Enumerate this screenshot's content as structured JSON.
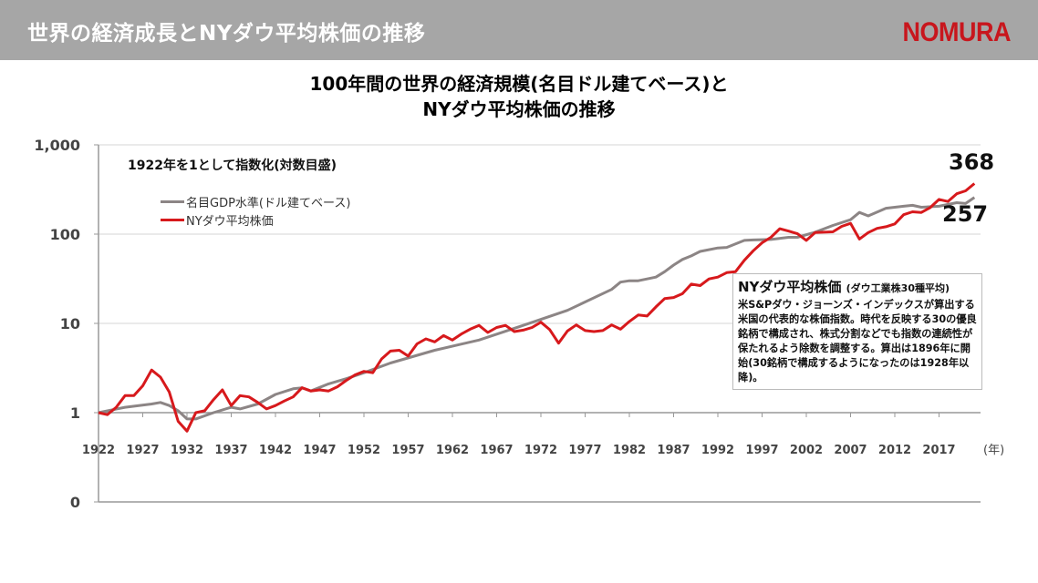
{
  "header": {
    "title": "世界の経済成長とNYダウ平均株価の推移",
    "logo": "NOMURA"
  },
  "colors": {
    "header_bg": "#a6a6a6",
    "brand": "#c8161d",
    "gdp": "#8c8585",
    "dow": "#d7191c"
  },
  "chart_data": {
    "type": "line",
    "title": [
      "100年間の世界の経済規模(名目ドル建てベース)と",
      "NYダウ平均株価の推移"
    ],
    "note": "1922年を1として指数化(対数目盛)",
    "xlabel": "(年)",
    "ylabel": "",
    "yscale": "log",
    "ylim": [
      0.1,
      1000
    ],
    "xlim": [
      1922,
      2021
    ],
    "yticks": [
      {
        "value": 1000,
        "label": "1,000"
      },
      {
        "value": 100,
        "label": "100"
      },
      {
        "value": 10,
        "label": "10"
      },
      {
        "value": 1,
        "label": "1"
      },
      {
        "value": 0.1,
        "label": "0"
      }
    ],
    "xticks": [
      "1922",
      "1927",
      "1932",
      "1937",
      "1942",
      "1947",
      "1952",
      "1957",
      "1962",
      "1967",
      "1972",
      "1977",
      "1982",
      "1987",
      "1992",
      "1997",
      "2002",
      "2007",
      "2012",
      "2017"
    ],
    "grid": true,
    "legend_position": "top-left",
    "end_labels": {
      "dow": "368",
      "gdp": "257"
    },
    "series": [
      {
        "name": "名目GDP水準(ドル建てベース)",
        "key": "gdp",
        "points": [
          [
            1922,
            1
          ],
          [
            1925,
            1.15
          ],
          [
            1928,
            1.25
          ],
          [
            1929,
            1.3
          ],
          [
            1930,
            1.2
          ],
          [
            1931,
            1.05
          ],
          [
            1932,
            0.85
          ],
          [
            1933,
            0.85
          ],
          [
            1935,
            1.0
          ],
          [
            1937,
            1.15
          ],
          [
            1938,
            1.1
          ],
          [
            1940,
            1.25
          ],
          [
            1942,
            1.6
          ],
          [
            1944,
            1.85
          ],
          [
            1945,
            1.9
          ],
          [
            1946,
            1.75
          ],
          [
            1948,
            2.1
          ],
          [
            1950,
            2.4
          ],
          [
            1952,
            2.8
          ],
          [
            1955,
            3.6
          ],
          [
            1960,
            5.0
          ],
          [
            1965,
            6.5
          ],
          [
            1970,
            9.5
          ],
          [
            1975,
            14
          ],
          [
            1980,
            24
          ],
          [
            1981,
            29
          ],
          [
            1982,
            30
          ],
          [
            1983,
            30
          ],
          [
            1985,
            33
          ],
          [
            1986,
            38
          ],
          [
            1987,
            45
          ],
          [
            1988,
            52
          ],
          [
            1989,
            57
          ],
          [
            1990,
            64
          ],
          [
            1992,
            70
          ],
          [
            1993,
            71
          ],
          [
            1995,
            85
          ],
          [
            1996,
            86
          ],
          [
            1998,
            87
          ],
          [
            2000,
            92
          ],
          [
            2001,
            92
          ],
          [
            2003,
            105
          ],
          [
            2005,
            125
          ],
          [
            2007,
            145
          ],
          [
            2008,
            175
          ],
          [
            2009,
            160
          ],
          [
            2011,
            195
          ],
          [
            2013,
            205
          ],
          [
            2014,
            210
          ],
          [
            2015,
            200
          ],
          [
            2017,
            205
          ],
          [
            2019,
            225
          ],
          [
            2020,
            220
          ],
          [
            2021,
            257
          ]
        ]
      },
      {
        "name": "NYダウ平均株価",
        "key": "dow",
        "points": [
          [
            1922,
            1.0
          ],
          [
            1923,
            0.95
          ],
          [
            1924,
            1.15
          ],
          [
            1925,
            1.55
          ],
          [
            1926,
            1.55
          ],
          [
            1927,
            2.0
          ],
          [
            1928,
            3.0
          ],
          [
            1929,
            2.5
          ],
          [
            1930,
            1.7
          ],
          [
            1931,
            0.8
          ],
          [
            1932,
            0.62
          ],
          [
            1933,
            1.0
          ],
          [
            1934,
            1.05
          ],
          [
            1935,
            1.4
          ],
          [
            1936,
            1.8
          ],
          [
            1937,
            1.2
          ],
          [
            1938,
            1.55
          ],
          [
            1939,
            1.5
          ],
          [
            1940,
            1.3
          ],
          [
            1941,
            1.1
          ],
          [
            1942,
            1.2
          ],
          [
            1943,
            1.35
          ],
          [
            1944,
            1.5
          ],
          [
            1945,
            1.9
          ],
          [
            1946,
            1.75
          ],
          [
            1947,
            1.8
          ],
          [
            1948,
            1.75
          ],
          [
            1949,
            1.95
          ],
          [
            1950,
            2.3
          ],
          [
            1951,
            2.65
          ],
          [
            1952,
            2.9
          ],
          [
            1953,
            2.8
          ],
          [
            1954,
            4.0
          ],
          [
            1955,
            4.9
          ],
          [
            1956,
            5.0
          ],
          [
            1957,
            4.3
          ],
          [
            1958,
            5.9
          ],
          [
            1959,
            6.7
          ],
          [
            1960,
            6.2
          ],
          [
            1961,
            7.3
          ],
          [
            1962,
            6.5
          ],
          [
            1963,
            7.6
          ],
          [
            1964,
            8.6
          ],
          [
            1965,
            9.5
          ],
          [
            1966,
            7.9
          ],
          [
            1967,
            9.0
          ],
          [
            1968,
            9.5
          ],
          [
            1969,
            8.1
          ],
          [
            1970,
            8.4
          ],
          [
            1971,
            9.0
          ],
          [
            1972,
            10.3
          ],
          [
            1973,
            8.5
          ],
          [
            1974,
            6.0
          ],
          [
            1975,
            8.2
          ],
          [
            1976,
            9.6
          ],
          [
            1977,
            8.3
          ],
          [
            1978,
            8.1
          ],
          [
            1979,
            8.3
          ],
          [
            1980,
            9.6
          ],
          [
            1981,
            8.6
          ],
          [
            1982,
            10.5
          ],
          [
            1983,
            12.4
          ],
          [
            1984,
            12.1
          ],
          [
            1985,
            15.3
          ],
          [
            1986,
            19.0
          ],
          [
            1987,
            19.5
          ],
          [
            1988,
            21.5
          ],
          [
            1989,
            27.5
          ],
          [
            1990,
            26.5
          ],
          [
            1991,
            31.5
          ],
          [
            1992,
            33
          ],
          [
            1993,
            37
          ],
          [
            1994,
            38
          ],
          [
            1995,
            51
          ],
          [
            1996,
            65
          ],
          [
            1997,
            80
          ],
          [
            1998,
            92
          ],
          [
            1999,
            115
          ],
          [
            2000,
            108
          ],
          [
            2001,
            101
          ],
          [
            2002,
            85
          ],
          [
            2003,
            104
          ],
          [
            2004,
            105
          ],
          [
            2005,
            106
          ],
          [
            2006,
            122
          ],
          [
            2007,
            132
          ],
          [
            2008,
            88
          ],
          [
            2009,
            104
          ],
          [
            2010,
            116
          ],
          [
            2011,
            121
          ],
          [
            2012,
            130
          ],
          [
            2013,
            165
          ],
          [
            2014,
            178
          ],
          [
            2015,
            175
          ],
          [
            2016,
            198
          ],
          [
            2017,
            245
          ],
          [
            2018,
            232
          ],
          [
            2019,
            283
          ],
          [
            2020,
            305
          ],
          [
            2021,
            368
          ]
        ]
      }
    ]
  },
  "annotation": {
    "title": "NYダウ平均株価",
    "subtitle": "(ダウ工業株30種平均)",
    "body": "米S&Pダウ・ジョーンズ・インデックスが算出する米国の代表的な株価指数。時代を反映する30の優良銘柄で構成され、株式分割などでも指数の連続性が保たれるよう除数を調整する。算出は1896年に開始(30銘柄で構成するようになったのは1928年以降)。"
  }
}
